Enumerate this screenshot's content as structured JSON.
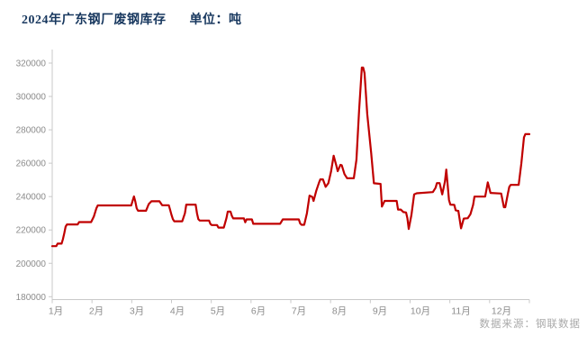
{
  "header": {
    "title": "2024年广东钢厂废钢库存",
    "unit_label": "单位：吨"
  },
  "footer": {
    "source": "数据来源：钢联数据"
  },
  "colors": {
    "title_text": "#17375E",
    "line": "#C00000",
    "axis": "#C9C9C9",
    "axis_text": "#8C8C8C",
    "source_text": "#A9A9A9",
    "background": "#FFFFFF"
  },
  "chart_data": {
    "type": "line",
    "title": "2024年广东钢厂废钢库存",
    "ylabel": "吨",
    "grid": false,
    "legend": false,
    "y_axis": {
      "min": 180000,
      "max": 320000,
      "step": 20000,
      "tick_labels": [
        "180000",
        "200000",
        "220000",
        "240000",
        "260000",
        "280000",
        "300000",
        "320000"
      ]
    },
    "x_axis": {
      "unit": "day-of-year",
      "range": [
        0,
        356
      ],
      "tick_labels": [
        "1月",
        "2月",
        "3月",
        "4月",
        "5月",
        "6月",
        "7月",
        "8月",
        "9月",
        "10月",
        "11月",
        "12月"
      ]
    },
    "series": [
      {
        "color": "#C00000",
        "points": [
          [
            0,
            210300
          ],
          [
            3,
            210300
          ],
          [
            4,
            211800
          ],
          [
            7,
            211800
          ],
          [
            8,
            214500
          ],
          [
            9,
            218000
          ],
          [
            10,
            222000
          ],
          [
            11,
            223300
          ],
          [
            19,
            223300
          ],
          [
            20,
            224700
          ],
          [
            29,
            224700
          ],
          [
            31,
            228000
          ],
          [
            33,
            233000
          ],
          [
            34,
            234700
          ],
          [
            59,
            234700
          ],
          [
            60,
            237500
          ],
          [
            61,
            240100
          ],
          [
            62,
            237000
          ],
          [
            63,
            233000
          ],
          [
            64,
            231500
          ],
          [
            70,
            231500
          ],
          [
            72,
            235500
          ],
          [
            74,
            237200
          ],
          [
            80,
            237200
          ],
          [
            82,
            234800
          ],
          [
            87,
            234800
          ],
          [
            88,
            232000
          ],
          [
            89,
            229000
          ],
          [
            90,
            226500
          ],
          [
            91,
            225200
          ],
          [
            97,
            225200
          ],
          [
            99,
            230000
          ],
          [
            100,
            235200
          ],
          [
            107,
            235200
          ],
          [
            108,
            230000
          ],
          [
            109,
            226500
          ],
          [
            110,
            225600
          ],
          [
            117,
            225600
          ],
          [
            118,
            223600
          ],
          [
            119,
            222900
          ],
          [
            123,
            222900
          ],
          [
            124,
            221400
          ],
          [
            128,
            221400
          ],
          [
            130,
            227000
          ],
          [
            131,
            231000
          ],
          [
            133,
            231000
          ],
          [
            134,
            228500
          ],
          [
            135,
            226900
          ],
          [
            143,
            226900
          ],
          [
            144,
            224600
          ],
          [
            145,
            226300
          ],
          [
            149,
            226300
          ],
          [
            150,
            223700
          ],
          [
            170,
            223700
          ],
          [
            172,
            226300
          ],
          [
            184,
            226300
          ],
          [
            185,
            223900
          ],
          [
            186,
            223100
          ],
          [
            188,
            223100
          ],
          [
            190,
            230000
          ],
          [
            192,
            240600
          ],
          [
            194,
            239800
          ],
          [
            195,
            237400
          ],
          [
            197,
            243500
          ],
          [
            199,
            248300
          ],
          [
            200,
            250300
          ],
          [
            202,
            250300
          ],
          [
            204,
            245800
          ],
          [
            206,
            248000
          ],
          [
            208,
            255000
          ],
          [
            210,
            264500
          ],
          [
            212,
            258500
          ],
          [
            213,
            255200
          ],
          [
            215,
            259000
          ],
          [
            216,
            258800
          ],
          [
            218,
            253500
          ],
          [
            220,
            251000
          ],
          [
            225,
            251000
          ],
          [
            227,
            262000
          ],
          [
            229,
            292000
          ],
          [
            231,
            317300
          ],
          [
            232,
            317300
          ],
          [
            233,
            314000
          ],
          [
            235,
            289500
          ],
          [
            238,
            266000
          ],
          [
            240,
            248000
          ],
          [
            245,
            247600
          ],
          [
            246,
            234000
          ],
          [
            248,
            237400
          ],
          [
            257,
            237400
          ],
          [
            258,
            232200
          ],
          [
            260,
            232200
          ],
          [
            262,
            230700
          ],
          [
            264,
            230500
          ],
          [
            265,
            227000
          ],
          [
            266,
            220600
          ],
          [
            268,
            229000
          ],
          [
            270,
            241300
          ],
          [
            272,
            242000
          ],
          [
            284,
            242700
          ],
          [
            286,
            245300
          ],
          [
            287,
            248100
          ],
          [
            289,
            248100
          ],
          [
            291,
            241300
          ],
          [
            293,
            249000
          ],
          [
            294,
            256200
          ],
          [
            296,
            238000
          ],
          [
            297,
            235200
          ],
          [
            300,
            235000
          ],
          [
            301,
            231800
          ],
          [
            303,
            231400
          ],
          [
            305,
            221000
          ],
          [
            307,
            226800
          ],
          [
            310,
            227000
          ],
          [
            312,
            229400
          ],
          [
            314,
            235000
          ],
          [
            315,
            240000
          ],
          [
            323,
            240000
          ],
          [
            325,
            248500
          ],
          [
            327,
            242200
          ],
          [
            335,
            241800
          ],
          [
            337,
            233600
          ],
          [
            338,
            233600
          ],
          [
            340,
            242000
          ],
          [
            341,
            245800
          ],
          [
            342,
            247000
          ],
          [
            348,
            247000
          ],
          [
            350,
            260000
          ],
          [
            352,
            275500
          ],
          [
            353,
            277400
          ],
          [
            356,
            277400
          ]
        ]
      }
    ]
  }
}
